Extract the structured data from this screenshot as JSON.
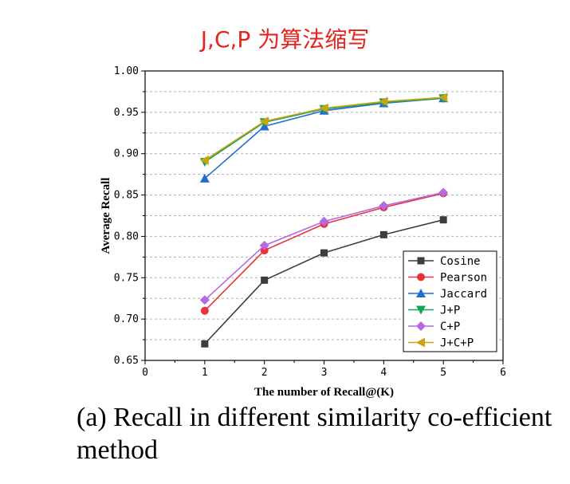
{
  "annotation": "J,C,P 为算法缩写",
  "caption": "(a) Recall in different similarity co-efficient method",
  "chart_data": {
    "type": "line",
    "xlabel": "The number of Recall@(K)",
    "ylabel": "Average Recall",
    "xlim": [
      0,
      6
    ],
    "ylim": [
      0.65,
      1.0
    ],
    "x_ticks": [
      "0",
      "1",
      "2",
      "3",
      "4",
      "5",
      "6"
    ],
    "y_ticks": [
      "0.65",
      "0.70",
      "0.75",
      "0.80",
      "0.85",
      "0.90",
      "0.95",
      "1.00"
    ],
    "grid": "horizontal dashed",
    "legend_position": "bottom-right",
    "x": [
      1,
      2,
      3,
      4,
      5
    ],
    "series": [
      {
        "name": "Cosine",
        "values": [
          0.67,
          0.747,
          0.78,
          0.802,
          0.82
        ],
        "color": "#3d3d3d",
        "marker": "square"
      },
      {
        "name": "Pearson",
        "values": [
          0.71,
          0.783,
          0.815,
          0.835,
          0.852
        ],
        "color": "#e8323c",
        "marker": "circle"
      },
      {
        "name": "Jaccard",
        "values": [
          0.87,
          0.933,
          0.952,
          0.961,
          0.967
        ],
        "color": "#1f6fd0",
        "marker": "triangle-up"
      },
      {
        "name": "J+P",
        "values": [
          0.89,
          0.938,
          0.954,
          0.962,
          0.967
        ],
        "color": "#17a35a",
        "marker": "triangle-down"
      },
      {
        "name": "C+P",
        "values": [
          0.723,
          0.789,
          0.818,
          0.837,
          0.853
        ],
        "color": "#b56ae4",
        "marker": "diamond"
      },
      {
        "name": "J+C+P",
        "values": [
          0.892,
          0.939,
          0.955,
          0.963,
          0.968
        ],
        "color": "#c9a40e",
        "marker": "triangle-left"
      }
    ]
  }
}
